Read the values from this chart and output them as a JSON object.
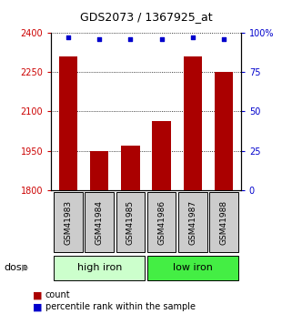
{
  "title": "GDS2073 / 1367925_at",
  "samples": [
    "GSM41983",
    "GSM41984",
    "GSM41985",
    "GSM41986",
    "GSM41987",
    "GSM41988"
  ],
  "bar_values": [
    2310,
    1950,
    1970,
    2065,
    2310,
    2250
  ],
  "percentile_values": [
    97,
    96,
    96,
    96,
    97,
    96
  ],
  "bar_color": "#aa0000",
  "dot_color": "#0000cc",
  "ylim_left": [
    1800,
    2400
  ],
  "ylim_right": [
    0,
    100
  ],
  "yticks_left": [
    1800,
    1950,
    2100,
    2250,
    2400
  ],
  "yticks_right": [
    0,
    25,
    50,
    75,
    100
  ],
  "ytick_labels_right": [
    "0",
    "25",
    "50",
    "75",
    "100%"
  ],
  "groups": [
    {
      "label": "high iron",
      "indices": [
        0,
        1,
        2
      ],
      "color": "#ccffcc"
    },
    {
      "label": "low iron",
      "indices": [
        3,
        4,
        5
      ],
      "color": "#44ee44"
    }
  ],
  "dose_label": "dose",
  "legend_count": "count",
  "legend_percentile": "percentile rank within the sample",
  "left_tick_color": "#cc0000",
  "right_tick_color": "#0000cc",
  "bar_width": 0.6,
  "title_fontsize": 9,
  "tick_fontsize": 7,
  "label_fontsize": 6.5,
  "group_fontsize": 8,
  "legend_fontsize": 7,
  "dose_fontsize": 8
}
